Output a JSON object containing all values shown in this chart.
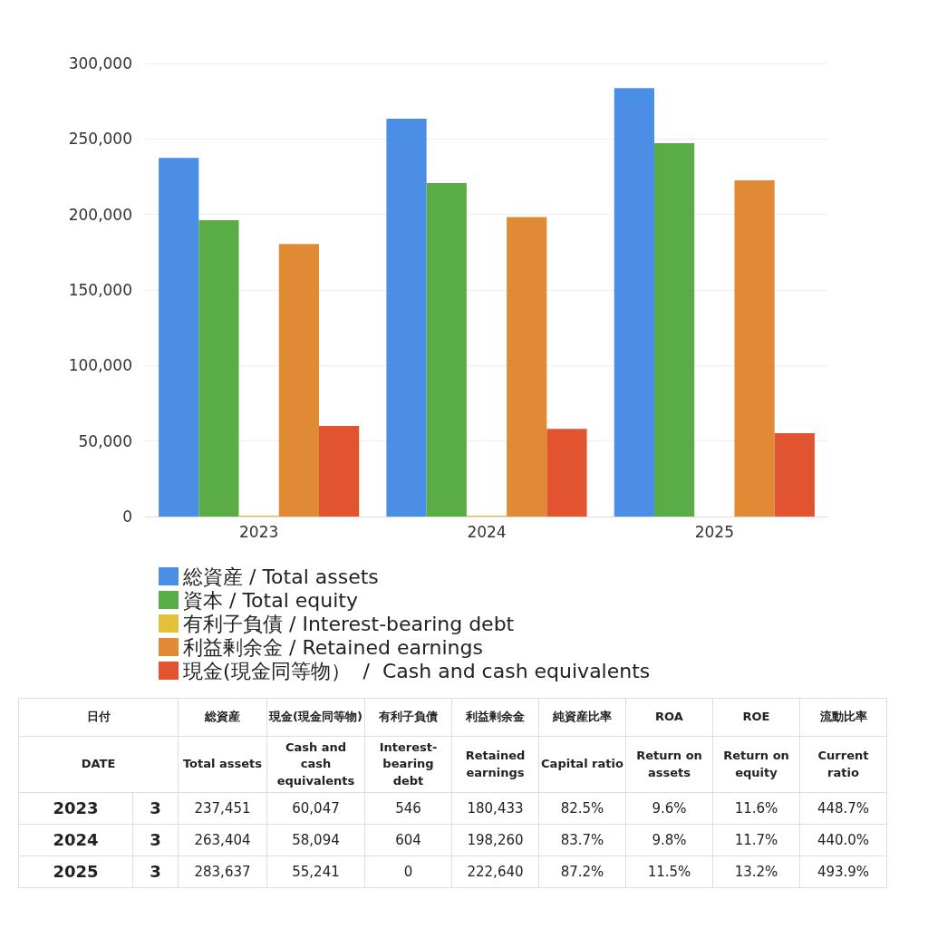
{
  "chart_data": [
    {
      "type": "bar",
      "categories": [
        "2023",
        "2024",
        "2025"
      ],
      "series": [
        {
          "name": "総資産 / Total assets",
          "color": "#4a8ee6",
          "values": [
            237451,
            263404,
            283637
          ]
        },
        {
          "name": "資本 / Total equity",
          "color": "#5aac47",
          "values": [
            196200,
            220800,
            247200
          ]
        },
        {
          "name": "有利子負債 / Interest-bearing debt",
          "color": "#e6bf3c",
          "values": [
            546,
            604,
            0
          ]
        },
        {
          "name": "利益剰余金 / Retained earnings",
          "color": "#e08a36",
          "values": [
            180433,
            198260,
            222640
          ]
        },
        {
          "name": "現金(現金同等物）  /  Cash and cash equivalents",
          "color": "#e2532f",
          "values": [
            60047,
            58094,
            55241
          ]
        }
      ],
      "ylim": [
        0,
        300000
      ],
      "yticks": [
        0,
        {
          "value": 50000,
          "label": "50,000"
        },
        {
          "value": 100000,
          "label": "100,000"
        },
        {
          "value": 150000,
          "label": "150,000"
        },
        {
          "value": 200000,
          "label": "200,000"
        },
        {
          "value": 250000,
          "label": "250,000"
        },
        {
          "value": 300000,
          "label": "300,000"
        }
      ],
      "grid": "y",
      "legend": "bottom"
    },
    {
      "type": "other",
      "cell_labels": [
        [
          "日付",
          null,
          "総資産",
          "現金(現金同等物)",
          "有利子負債",
          "利益剰余金",
          "純資産比率",
          "ROA",
          "ROE",
          "流動比率"
        ],
        [
          "DATE",
          null,
          "Total assets",
          "Cash and cash equivalents",
          "Interest-bearing debt",
          "Retained earnings",
          "Capital ratio",
          "Return on assets",
          "Return on equity",
          "Current ratio"
        ],
        [
          "2023",
          "3",
          "237,451",
          "60,047",
          "546",
          "180,433",
          "82.5%",
          "9.6%",
          "11.6%",
          "448.7%"
        ],
        [
          "2024",
          "3",
          "263,404",
          "58,094",
          "604",
          "198,260",
          "83.7%",
          "9.8%",
          "11.7%",
          "440.0%"
        ],
        [
          "2025",
          "3",
          "283,637",
          "55,241",
          "0",
          "222,640",
          "87.2%",
          "11.5%",
          "13.2%",
          "493.9%"
        ]
      ]
    }
  ]
}
